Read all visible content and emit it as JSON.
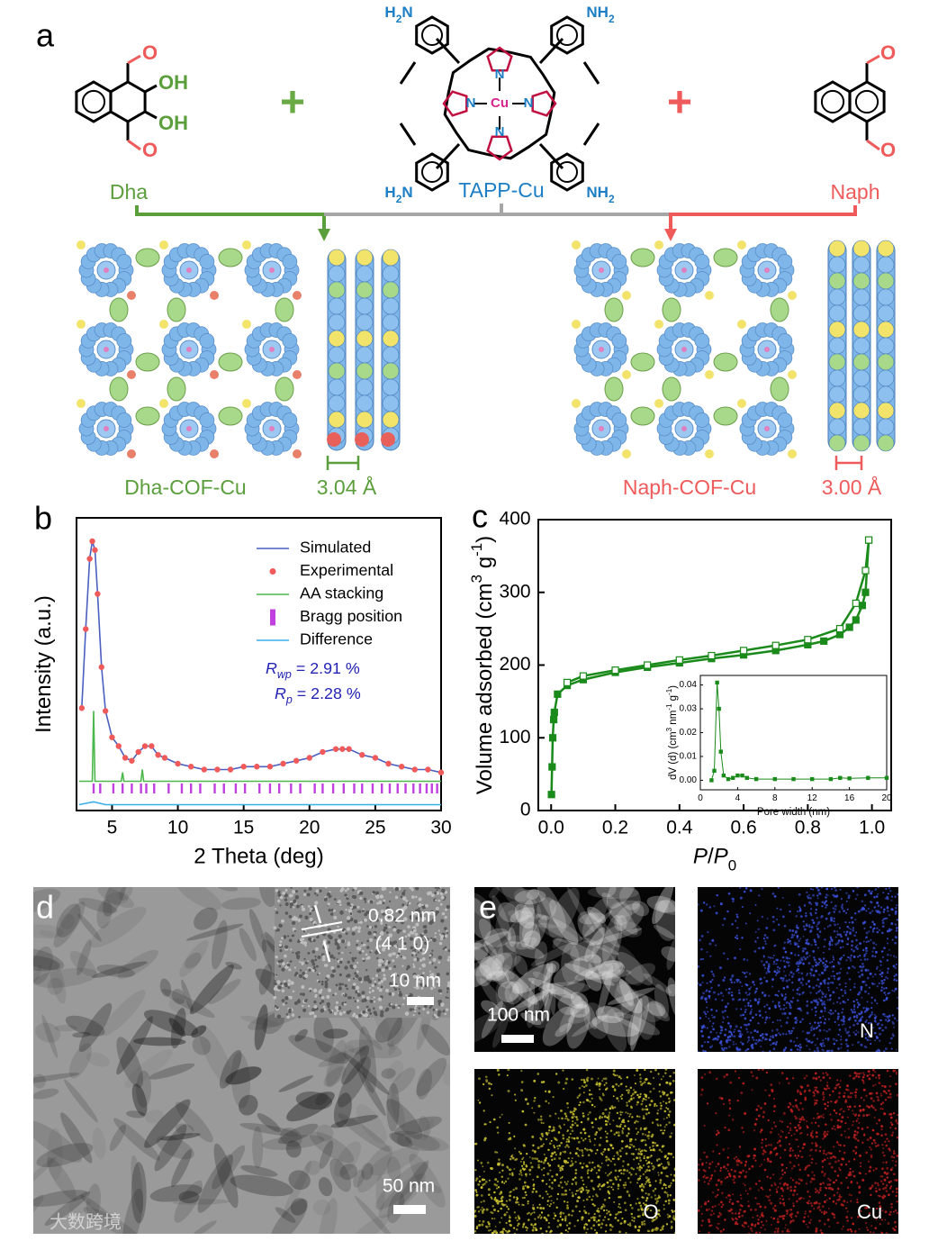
{
  "panel_labels": [
    "a",
    "b",
    "c",
    "d",
    "e"
  ],
  "scheme": {
    "reactants": {
      "dha": "Dha",
      "tapp": "TAPP-Cu",
      "naph": "Naph"
    },
    "plus": "+",
    "atoms": {
      "O": "O",
      "OH": "OH",
      "N": "N",
      "Cu": "Cu",
      "H2N": [
        {
          "text": "H"
        },
        {
          "text": "2",
          "script": "sub"
        },
        {
          "text": "N"
        }
      ],
      "NH2": [
        {
          "text": "NH"
        },
        {
          "text": "2",
          "script": "sub"
        }
      ]
    },
    "products": [
      "Dha-COF-Cu",
      "Naph-COF-Cu"
    ],
    "spacings": [
      "3.04 Å",
      "3.00 Å"
    ]
  },
  "chart_data": [
    {
      "type": "line",
      "xlabel": [
        {
          "text": "2 Theta (deg)"
        }
      ],
      "ylabel": [
        {
          "text": "Intensity (a.u.)"
        }
      ],
      "xlim": [
        2.3,
        30
      ],
      "xticks": [
        5,
        10,
        15,
        20,
        25,
        30
      ],
      "ylim": [
        0,
        100
      ],
      "legend": "upper right",
      "series": [
        {
          "name": "Simulated",
          "color": "#4a5fc1",
          "style": "line",
          "x": [
            2.7,
            3,
            3.3,
            3.5,
            3.7,
            3.9,
            4.2,
            4.5,
            5,
            5.5,
            6,
            6.5,
            7,
            7.5,
            8,
            8.5,
            9,
            10,
            11,
            12,
            13,
            14,
            15,
            16,
            17,
            18,
            19,
            20,
            21,
            22,
            22.5,
            23,
            24,
            25,
            26,
            27,
            28,
            29,
            30
          ],
          "values": [
            35,
            62,
            86,
            92,
            89,
            74,
            49,
            34,
            25,
            22,
            18,
            17,
            20,
            22,
            22,
            19,
            18,
            16,
            15,
            14,
            14,
            14,
            15,
            15,
            15,
            16,
            17,
            18,
            20,
            21,
            21,
            21,
            19,
            18,
            16,
            15,
            14,
            14,
            13
          ]
        },
        {
          "name": "Experimental",
          "color": "#f05a5a",
          "style": "dots",
          "x": [
            2.7,
            3,
            3.3,
            3.5,
            3.7,
            3.9,
            4.2,
            4.5,
            5,
            5.5,
            6,
            6.5,
            7,
            7.5,
            8,
            8.5,
            9,
            10,
            11,
            12,
            13,
            14,
            15,
            16,
            17,
            18,
            19,
            20,
            21,
            22,
            22.5,
            23,
            24,
            25,
            26,
            27,
            28,
            29,
            30
          ],
          "values": [
            35,
            62,
            86,
            92,
            89,
            74,
            49,
            34,
            25,
            22,
            18,
            17,
            20,
            22,
            22,
            19,
            18,
            16,
            15,
            14,
            14,
            14,
            15,
            15,
            15,
            16,
            17,
            18,
            20,
            21,
            21,
            21,
            19,
            18,
            16,
            15,
            14,
            14,
            13
          ]
        },
        {
          "name": "AA stacking",
          "color": "#4cb84c",
          "style": "line",
          "x": [
            2.5,
            3.5,
            3.6,
            3.7,
            5.7,
            5.8,
            5.9,
            7.2,
            7.3,
            7.4,
            30
          ],
          "values": [
            10,
            10,
            34,
            10,
            10,
            13,
            10,
            10,
            14,
            10,
            10
          ]
        },
        {
          "name": "Bragg position",
          "color": "#c040e0",
          "style": "ticks",
          "x": [
            3.6,
            4.1,
            5.1,
            5.8,
            6.5,
            7.2,
            7.6,
            8.2,
            9.3,
            10.3,
            11.0,
            11.7,
            12.8,
            13.5,
            14.4,
            15.1,
            16.2,
            17.0,
            17.7,
            18.6,
            19.3,
            20.4,
            21.0,
            21.8,
            22.6,
            23.4,
            24.0,
            24.8,
            25.5,
            26.1,
            26.7,
            27.3,
            27.9,
            28.4,
            28.9,
            29.3,
            29.7
          ]
        },
        {
          "name": "Difference",
          "color": "#3aaee8",
          "style": "line",
          "x": [
            2.5,
            3.6,
            4.5,
            30
          ],
          "values": [
            2,
            3,
            2,
            2
          ]
        }
      ],
      "annotations": [
        [
          {
            "text": "R",
            "script": "italic"
          },
          {
            "text": "wp",
            "script": "sub-italic"
          },
          {
            "text": " = 2.91 %"
          }
        ],
        [
          {
            "text": "R",
            "script": "italic"
          },
          {
            "text": "p",
            "script": "sub-italic"
          },
          {
            "text": " = 2.28 %"
          }
        ]
      ],
      "annotation_color": "#2323b4"
    },
    {
      "type": "line",
      "xlabel": [
        {
          "text": "P",
          "script": "italic"
        },
        {
          "text": "/"
        },
        {
          "text": "P",
          "script": "italic"
        },
        {
          "text": "0",
          "script": "sub"
        }
      ],
      "ylabel": [
        {
          "text": "Volume adsorbed (cm"
        },
        {
          "text": "3",
          "script": "super"
        },
        {
          "text": " g"
        },
        {
          "text": "-1",
          "script": "super"
        },
        {
          "text": ")"
        }
      ],
      "xlim": [
        -0.04,
        1.06
      ],
      "xticks": [
        {
          "value": 0,
          "label": "0.0"
        },
        {
          "value": 0.2,
          "label": "0.2"
        },
        {
          "value": 0.4,
          "label": "0.4"
        },
        {
          "value": 0.6,
          "label": "0.6"
        },
        {
          "value": 0.8,
          "label": "0.8"
        },
        {
          "value": 1,
          "label": "1.0"
        }
      ],
      "ylim": [
        0,
        400
      ],
      "yticks": [
        0,
        100,
        200,
        300,
        400
      ],
      "series": [
        {
          "color": "#1a8a1a",
          "style": "line",
          "marker": "filled",
          "x": [
            0.001,
            0.003,
            0.005,
            0.008,
            0.01,
            0.02,
            0.05,
            0.1,
            0.2,
            0.3,
            0.4,
            0.5,
            0.6,
            0.7,
            0.8,
            0.85,
            0.9,
            0.93,
            0.95,
            0.97,
            0.98,
            0.99
          ],
          "values": [
            22,
            60,
            100,
            125,
            135,
            160,
            172,
            180,
            190,
            197,
            203,
            209,
            214,
            220,
            228,
            233,
            242,
            252,
            262,
            282,
            300,
            372
          ]
        },
        {
          "color": "#1a8a1a",
          "style": "line",
          "marker": "open",
          "x": [
            0.99,
            0.98,
            0.95,
            0.9,
            0.8,
            0.7,
            0.6,
            0.5,
            0.4,
            0.3,
            0.2,
            0.1,
            0.05
          ],
          "values": [
            372,
            330,
            285,
            250,
            235,
            227,
            220,
            213,
            207,
            200,
            193,
            185,
            176
          ]
        }
      ]
    },
    {
      "type": "line",
      "xlabel": [
        {
          "text": "Pore width (nm)"
        }
      ],
      "ylabel": [
        {
          "text": "dV (d) (cm"
        },
        {
          "text": "3",
          "script": "super"
        },
        {
          "text": " nm"
        },
        {
          "text": "-1",
          "script": "super"
        },
        {
          "text": " g"
        },
        {
          "text": "-1",
          "script": "super"
        },
        {
          "text": ")"
        }
      ],
      "xlim": [
        0,
        20
      ],
      "xticks": [
        0,
        4,
        8,
        12,
        16,
        20
      ],
      "ylim": [
        -0.004,
        0.044
      ],
      "yticks": [
        {
          "value": 0,
          "label": "0.00"
        },
        {
          "value": 0.01,
          "label": "0.01"
        },
        {
          "value": 0.02,
          "label": "0.02"
        },
        {
          "value": 0.03,
          "label": "0.03"
        },
        {
          "value": 0.04,
          "label": "0.04"
        }
      ],
      "series": [
        {
          "color": "#1a8a1a",
          "style": "line",
          "marker": "small",
          "x": [
            1.2,
            1.5,
            1.8,
            2.0,
            2.2,
            2.5,
            3,
            3.5,
            4,
            4.5,
            5,
            6,
            8,
            10,
            12,
            14,
            15,
            16,
            18,
            20
          ],
          "values": [
            0.0,
            0.004,
            0.041,
            0.03,
            0.012,
            0.002,
            0.0005,
            0.001,
            0.002,
            0.002,
            0.001,
            0.0005,
            0.0005,
            0.0005,
            0.0005,
            0.0005,
            0.001,
            0.0008,
            0.001,
            0.001
          ]
        }
      ]
    }
  ],
  "tem": {
    "d_spacing": "0.82 nm",
    "plane": "(4 1 0)",
    "inset_scale": "10 nm",
    "scale": "50 nm"
  },
  "mapping": {
    "scale": "100 nm",
    "elements": [
      "N",
      "O",
      "Cu"
    ]
  },
  "watermark": "大数跨境"
}
